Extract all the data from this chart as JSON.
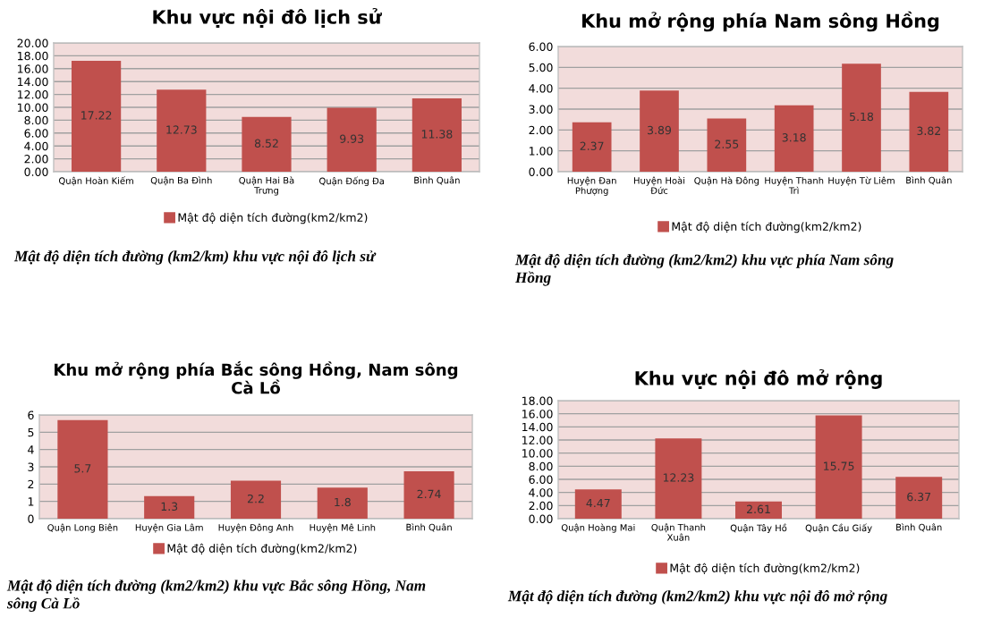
{
  "chart_data": [
    {
      "type": "bar",
      "title": "Khu vực nội đô lịch sử",
      "categories": [
        "Quận Hoàn Kiếm",
        "Quận Ba Đình",
        "Quận Hai Bà\nTrưng",
        "Quận Đống Đa",
        "Bình Quân"
      ],
      "series": [
        {
          "name": "Mật độ diện tích đường(km2/km2)",
          "color": "#c0504d",
          "values": [
            17.22,
            12.73,
            8.52,
            9.93,
            11.38
          ]
        }
      ],
      "ylim": [
        0,
        20
      ],
      "yticks": [
        {
          "value": 0,
          "label": "0.00"
        },
        {
          "value": 2,
          "label": "2.00"
        },
        {
          "value": 4,
          "label": "4.00"
        },
        {
          "value": 6,
          "label": "6.00"
        },
        {
          "value": 8,
          "label": "8.00"
        },
        {
          "value": 10,
          "label": "10.00"
        },
        {
          "value": 12,
          "label": "12.00"
        },
        {
          "value": 14,
          "label": "14.00"
        },
        {
          "value": 16,
          "label": "16.00"
        },
        {
          "value": 18,
          "label": "18.00"
        },
        {
          "value": 20,
          "label": "20.00"
        }
      ],
      "grid": "y",
      "legend": "bottom",
      "data_labels": true,
      "annotations": [
        "Mật độ diện tích đường (km2/km) khu vực nội đô lịch sử"
      ]
    },
    {
      "type": "bar",
      "title": "Khu mở rộng phía Nam sông Hồng",
      "categories": [
        "Huyện Đan\nPhượng",
        "Huyện Hoài\nĐức",
        "Quận Hà Đông",
        "Huyện Thanh\nTrì",
        "Huyện Từ Liêm",
        "Bình Quân"
      ],
      "series": [
        {
          "name": "Mật độ diện tích đường(km2/km2)",
          "color": "#c0504d",
          "values": [
            2.37,
            3.89,
            2.55,
            3.18,
            5.18,
            3.82
          ]
        }
      ],
      "ylim": [
        0,
        6
      ],
      "yticks": [
        {
          "value": 0,
          "label": "0.00"
        },
        {
          "value": 1,
          "label": "1.00"
        },
        {
          "value": 2,
          "label": "2.00"
        },
        {
          "value": 3,
          "label": "3.00"
        },
        {
          "value": 4,
          "label": "4.00"
        },
        {
          "value": 5,
          "label": "5.00"
        },
        {
          "value": 6,
          "label": "6.00"
        }
      ],
      "grid": "y",
      "legend": "bottom",
      "data_labels": true,
      "annotations": [
        "Mật độ diện tích đường (km2/km2) khu vực phía Nam sông\nHồng"
      ]
    },
    {
      "type": "bar",
      "title": "Khu mở rộng phía Bắc sông Hồng, Nam sông\nCà Lồ",
      "categories": [
        "Quận Long Biên",
        "Huyện Gia Lâm",
        "Huyện Đông Anh",
        "Huyện Mê Linh",
        "Bình Quân"
      ],
      "series": [
        {
          "name": "Mật độ diện tích đường(km2/km2)",
          "color": "#c0504d",
          "values": [
            5.7,
            1.3,
            2.2,
            1.8,
            2.74
          ]
        }
      ],
      "ylim": [
        0,
        6
      ],
      "yticks": [
        0,
        1,
        2,
        3,
        4,
        5,
        6
      ],
      "grid": "y",
      "legend": "bottom",
      "data_labels": true,
      "annotations": [
        "Mật độ diện tích đường (km2/km2) khu vực Bắc sông Hồng, Nam\nsông Cà Lồ"
      ]
    },
    {
      "type": "bar",
      "title": "Khu vực nội đô mở rộng",
      "categories": [
        "Quận Hoàng Mai",
        "Quận Thanh\nXuân",
        "Quận Tây Hồ",
        "Quận Cầu Giấy",
        "Bình Quân"
      ],
      "series": [
        {
          "name": "Mật độ diện tích đường(km2/km2)",
          "color": "#c0504d",
          "values": [
            4.47,
            12.23,
            2.61,
            15.75,
            6.37
          ]
        }
      ],
      "ylim": [
        0,
        18
      ],
      "yticks": [
        {
          "value": 0,
          "label": "0.00"
        },
        {
          "value": 2,
          "label": "2.00"
        },
        {
          "value": 4,
          "label": "4.00"
        },
        {
          "value": 6,
          "label": "6.00"
        },
        {
          "value": 8,
          "label": "8.00"
        },
        {
          "value": 10,
          "label": "10.00"
        },
        {
          "value": 12,
          "label": "12.00"
        },
        {
          "value": 14,
          "label": "14.00"
        },
        {
          "value": 16,
          "label": "16.00"
        },
        {
          "value": 18,
          "label": "18.00"
        }
      ],
      "grid": "y",
      "legend": "bottom",
      "data_labels": true,
      "annotations": [
        "Mật độ diện tích đường (km2/km2) khu vực nội đô mở rộng"
      ]
    }
  ]
}
